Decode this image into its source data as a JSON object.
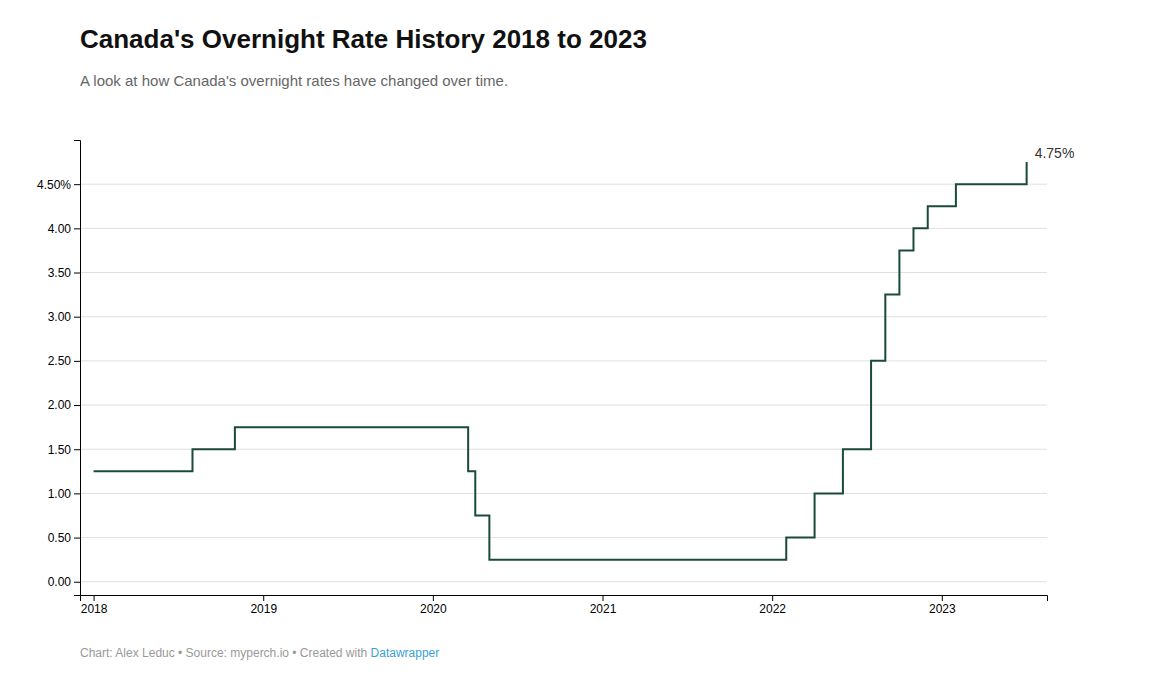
{
  "chart_data": {
    "type": "line",
    "line_style": "step",
    "title": "Canada's Overnight Rate History 2018 to 2023",
    "subtitle": "A look at how Canada's overnight rates have changed over time.",
    "footnote": "Chart: Alex Leduc • Source: myperch.io • Created with ",
    "footnote_link": "Datawrapper",
    "color": "#1a4a3a",
    "x": [
      2018.0,
      2018.25,
      2018.583,
      2018.833,
      2019.417,
      2019.833,
      2020.0,
      2020.208,
      2020.25,
      2020.333,
      2021.917,
      2022.083,
      2022.25,
      2022.417,
      2022.583,
      2022.667,
      2022.75,
      2022.833,
      2022.917,
      2023.0,
      2023.083,
      2023.25,
      2023.5
    ],
    "values": [
      1.25,
      1.25,
      1.5,
      1.75,
      1.75,
      1.75,
      1.75,
      1.25,
      0.75,
      0.25,
      0.25,
      0.5,
      1.0,
      1.5,
      2.5,
      3.25,
      3.75,
      4.0,
      4.25,
      4.25,
      4.5,
      4.5,
      4.75
    ],
    "xlim": [
      2017.92,
      2023.62
    ],
    "xticks": [
      2018,
      2019,
      2020,
      2021,
      2022,
      2023
    ],
    "ylim": [
      -0.15,
      5.0
    ],
    "yticks": [
      {
        "value": 0.0,
        "label": "0.00"
      },
      {
        "value": 0.5,
        "label": "0.50"
      },
      {
        "value": 1.0,
        "label": "1.00"
      },
      {
        "value": 1.5,
        "label": "1.50"
      },
      {
        "value": 2.0,
        "label": "2.00"
      },
      {
        "value": 2.5,
        "label": "2.50"
      },
      {
        "value": 3.0,
        "label": "3.00"
      },
      {
        "value": 3.5,
        "label": "3.50"
      },
      {
        "value": 4.0,
        "label": "4.00"
      },
      {
        "value": 4.5,
        "label": "4.50%"
      }
    ],
    "grid": true,
    "annotations": [
      {
        "text": "4.75%",
        "x": 2023.5,
        "y": 4.75
      }
    ]
  }
}
